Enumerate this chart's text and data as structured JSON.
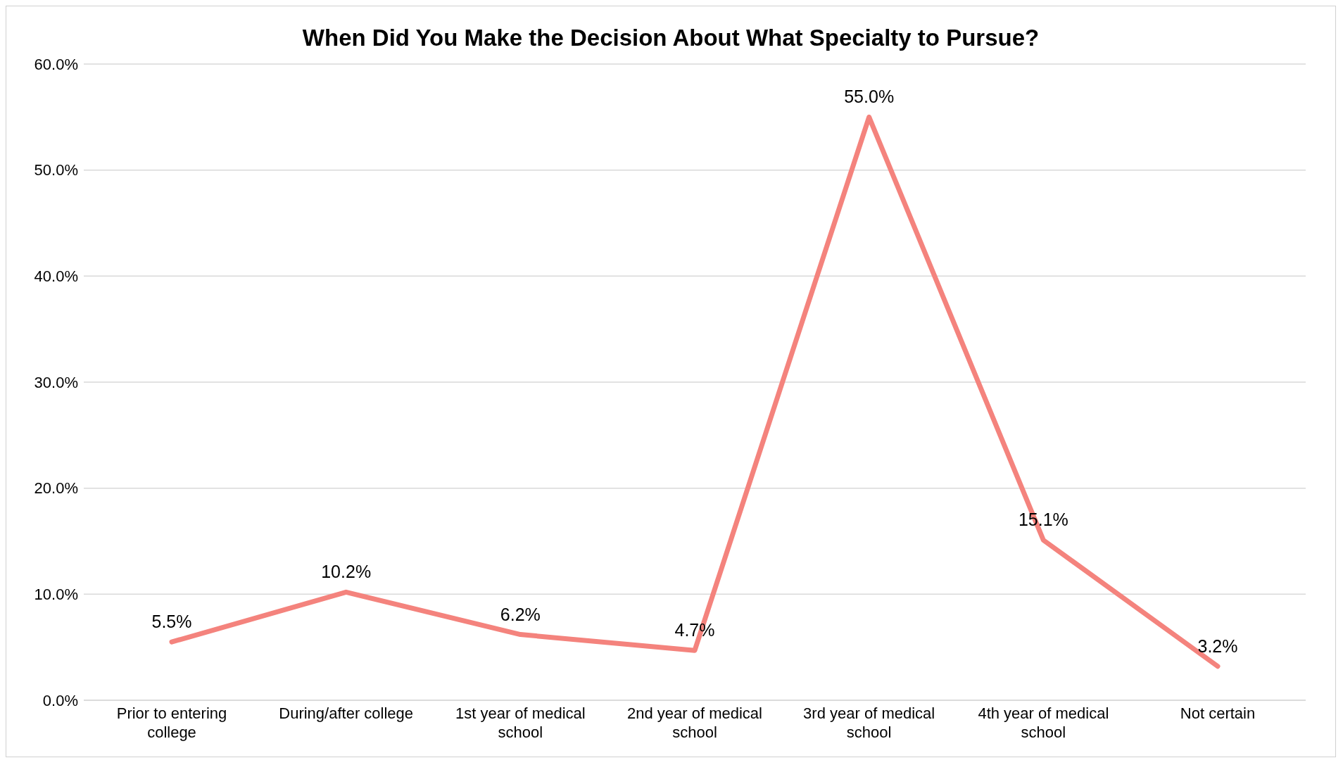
{
  "chart_data": {
    "type": "line",
    "title": "When Did You Make the Decision About What Specialty to Pursue?",
    "categories": [
      "Prior to entering college",
      "During/after college",
      "1st year of medical school",
      "2nd year of medical school",
      "3rd year of medical school",
      "4th year of medical school",
      "Not certain"
    ],
    "series": [
      {
        "color": "#f4837d",
        "values": [
          5.5,
          10.2,
          6.2,
          4.7,
          55.0,
          15.1,
          3.2
        ]
      }
    ],
    "value_labels": [
      "5.5%",
      "10.2%",
      "6.2%",
      "4.7%",
      "55.0%",
      "15.1%",
      "3.2%"
    ],
    "ylim": [
      0,
      60
    ],
    "yticks": [
      {
        "value": 0,
        "label": "0.0%"
      },
      {
        "value": 10,
        "label": "10.0%"
      },
      {
        "value": 20,
        "label": "20.0%"
      },
      {
        "value": 30,
        "label": "30.0%"
      },
      {
        "value": 40,
        "label": "40.0%"
      },
      {
        "value": 50,
        "label": "50.0%"
      },
      {
        "value": 60,
        "label": "60.0%"
      }
    ],
    "grid": "y",
    "marker": "none",
    "line_style": "solid"
  }
}
